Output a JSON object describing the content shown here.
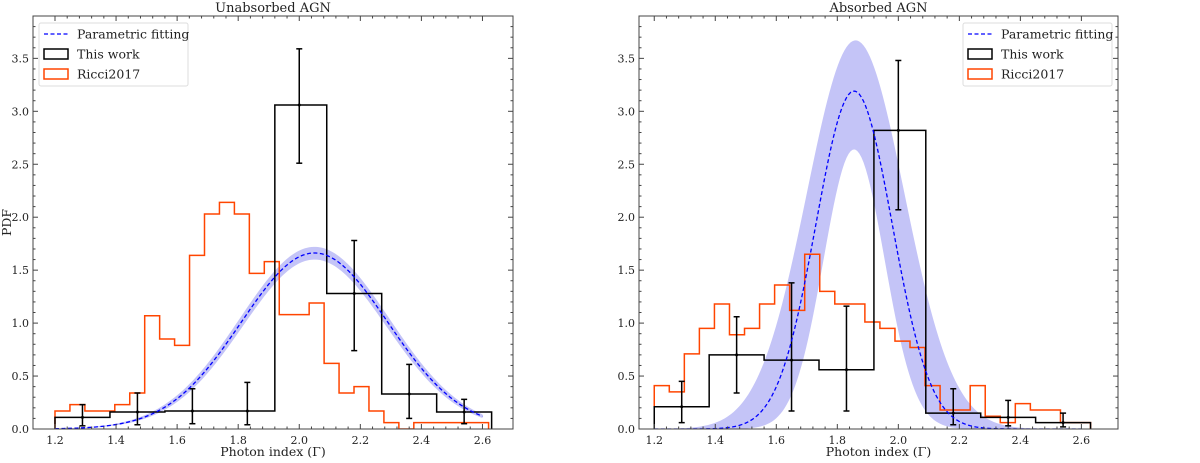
{
  "colors": {
    "fit": "#0000ff",
    "band": "#c4c4f7",
    "this_work": "#000000",
    "ricci": "#ff4500"
  },
  "chart_data": [
    {
      "type": "bar",
      "title": "Unabsorbed AGN",
      "xlabel": "Photon index (Γ)",
      "ylabel": "PDF",
      "xlim": [
        1.128,
        2.7
      ],
      "ylim": [
        0,
        3.9
      ],
      "xticks": [
        "1.2",
        "1.4",
        "1.6",
        "1.8",
        "2.0",
        "2.2",
        "2.4",
        "2.6"
      ],
      "yticks": [
        "0.0",
        "0.5",
        "1.0",
        "1.5",
        "2.0",
        "2.5",
        "3.0",
        "3.5"
      ],
      "legend": {
        "placement": "top-left",
        "entries": [
          "Parametric fitting",
          "This work",
          "Ricci2017"
        ]
      },
      "fit": {
        "name": "Parametric fitting",
        "mean": 2.05,
        "sigma": 0.24,
        "range": [
          1.2,
          2.6
        ],
        "band_upper": {
          "mean": 2.05,
          "sigma": 0.245,
          "peak": 1.72
        },
        "band_lower": {
          "mean": 2.05,
          "sigma": 0.235,
          "peak": 1.6
        }
      },
      "this_work": {
        "name": "This work",
        "edges": [
          1.2,
          1.38,
          1.56,
          1.74,
          1.92,
          2.09,
          2.27,
          2.45,
          2.63
        ],
        "centers": [
          1.29,
          1.47,
          1.65,
          1.83,
          2.0,
          2.18,
          2.36,
          2.54
        ],
        "values": [
          0.11,
          0.16,
          0.17,
          0.17,
          3.06,
          1.28,
          0.33,
          0.16
        ],
        "err_low": [
          0.03,
          0.04,
          0.05,
          0.04,
          2.51,
          0.74,
          0.1,
          0.05
        ],
        "err_high": [
          0.23,
          0.34,
          0.38,
          0.44,
          3.59,
          1.78,
          0.61,
          0.28
        ]
      },
      "ricci": {
        "name": "Ricci2017",
        "start": 1.2,
        "end": 2.62,
        "values": [
          0.17,
          0.23,
          0.17,
          0.17,
          0.23,
          0.34,
          1.07,
          0.85,
          0.79,
          1.64,
          2.03,
          2.14,
          2.03,
          1.47,
          1.58,
          1.08,
          1.08,
          1.19,
          0.62,
          0.34,
          0.4,
          0.17,
          0.06,
          0.0,
          0.06,
          0.06,
          0.06,
          0.06,
          0.06
        ]
      }
    },
    {
      "type": "bar",
      "title": "Absorbed AGN",
      "xlabel": "Photon index (Γ)",
      "ylabel": "",
      "xlim": [
        1.15,
        2.72
      ],
      "ylim": [
        0,
        3.9
      ],
      "xticks": [
        "1.2",
        "1.4",
        "1.6",
        "1.8",
        "2.0",
        "2.2",
        "2.4",
        "2.6"
      ],
      "yticks": [
        "0.0",
        "0.5",
        "1.0",
        "1.5",
        "2.0",
        "2.5",
        "3.0",
        "3.5"
      ],
      "legend": {
        "placement": "top-right",
        "entries": [
          "Parametric fitting",
          "This work",
          "Ricci2017"
        ]
      },
      "fit": {
        "name": "Parametric fitting",
        "mean": 1.855,
        "sigma": 0.125,
        "range": [
          1.2,
          2.6
        ],
        "band_upper": {
          "mean": 1.86,
          "sigma": 0.16,
          "peak": 3.67
        },
        "band_lower": {
          "mean": 1.855,
          "sigma": 0.1,
          "peak": 2.64
        }
      },
      "this_work": {
        "name": "This work",
        "edges": [
          1.2,
          1.38,
          1.56,
          1.74,
          1.92,
          2.09,
          2.27,
          2.45,
          2.63
        ],
        "centers": [
          1.29,
          1.47,
          1.65,
          1.83,
          2.0,
          2.18,
          2.36,
          2.54
        ],
        "values": [
          0.21,
          0.7,
          0.65,
          0.56,
          2.82,
          0.15,
          0.11,
          0.06
        ],
        "err_low": [
          0.06,
          0.34,
          0.17,
          0.17,
          2.07,
          0.04,
          0.03,
          0.02
        ],
        "err_high": [
          0.45,
          1.06,
          1.38,
          1.16,
          3.48,
          0.38,
          0.27,
          0.15
        ]
      },
      "ricci": {
        "name": "Ricci2017",
        "start": 1.2,
        "end": 2.63,
        "values": [
          0.41,
          0.35,
          0.71,
          0.95,
          1.18,
          0.89,
          0.95,
          1.18,
          1.36,
          1.12,
          1.65,
          1.3,
          1.18,
          1.18,
          1.01,
          0.95,
          0.83,
          0.77,
          0.41,
          0.18,
          0.18,
          0.41,
          0.12,
          0.06,
          0.24,
          0.18,
          0.18,
          0.06,
          0.06
        ]
      }
    }
  ]
}
